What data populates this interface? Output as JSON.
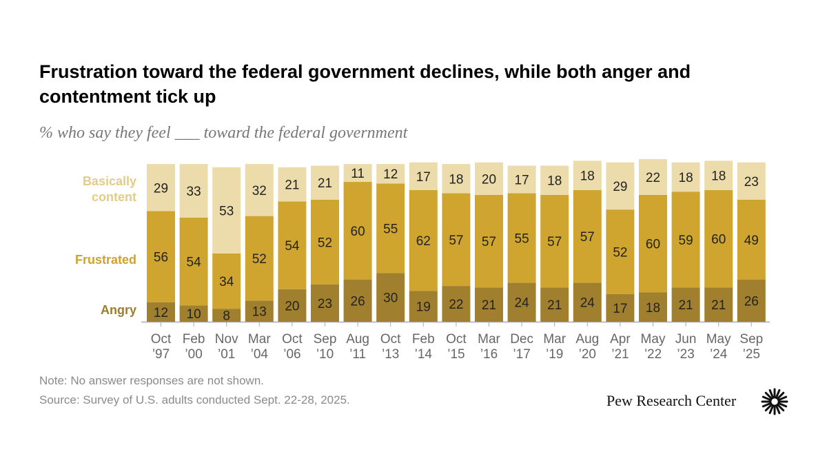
{
  "title": "Frustration toward the federal government declines, while both anger and contentment tick up",
  "subtitle": "% who say they feel ___ toward the federal government",
  "note": "Note: No answer responses are not shown.",
  "source": "Source: Survey of U.S. adults conducted Sept. 22-28, 2025.",
  "logo": "Pew Research Center",
  "chart_data": {
    "type": "bar",
    "stacked": true,
    "categories": [
      [
        "Oct",
        "’97"
      ],
      [
        "Feb",
        "’00"
      ],
      [
        "Nov",
        "’01"
      ],
      [
        "Mar",
        "’04"
      ],
      [
        "Oct",
        "’06"
      ],
      [
        "Sep",
        "’10"
      ],
      [
        "Aug",
        "’11"
      ],
      [
        "Oct",
        "’13"
      ],
      [
        "Feb",
        "’14"
      ],
      [
        "Oct",
        "’15"
      ],
      [
        "Mar",
        "’16"
      ],
      [
        "Dec",
        "’17"
      ],
      [
        "Mar",
        "’19"
      ],
      [
        "Aug",
        "’20"
      ],
      [
        "Apr",
        "’21"
      ],
      [
        "May",
        "’22"
      ],
      [
        "Jun",
        "’23"
      ],
      [
        "May",
        "’24"
      ],
      [
        "Sep",
        "’25"
      ]
    ],
    "series": [
      {
        "name": "Angry",
        "color": "#a0802e",
        "label_color": "#9d7d2c",
        "values": [
          12,
          10,
          8,
          13,
          20,
          23,
          26,
          30,
          19,
          22,
          21,
          24,
          21,
          24,
          17,
          18,
          21,
          21,
          26
        ]
      },
      {
        "name": "Frustrated",
        "color": "#cfa52f",
        "label_color": "#cda22f",
        "values": [
          56,
          54,
          34,
          52,
          54,
          52,
          60,
          55,
          62,
          57,
          57,
          55,
          57,
          57,
          52,
          60,
          59,
          60,
          49
        ]
      },
      {
        "name": "Basically content",
        "color": "#ecdcab",
        "label_color": "#e3cc88",
        "values": [
          29,
          33,
          53,
          32,
          21,
          21,
          11,
          12,
          17,
          18,
          20,
          17,
          18,
          18,
          29,
          22,
          18,
          18,
          23
        ]
      }
    ],
    "series_labels": [
      "Angry",
      "Frustrated",
      [
        "Basically",
        "content"
      ]
    ],
    "ylim": [
      0,
      100
    ],
    "grid": false,
    "legend": "left, inline"
  }
}
